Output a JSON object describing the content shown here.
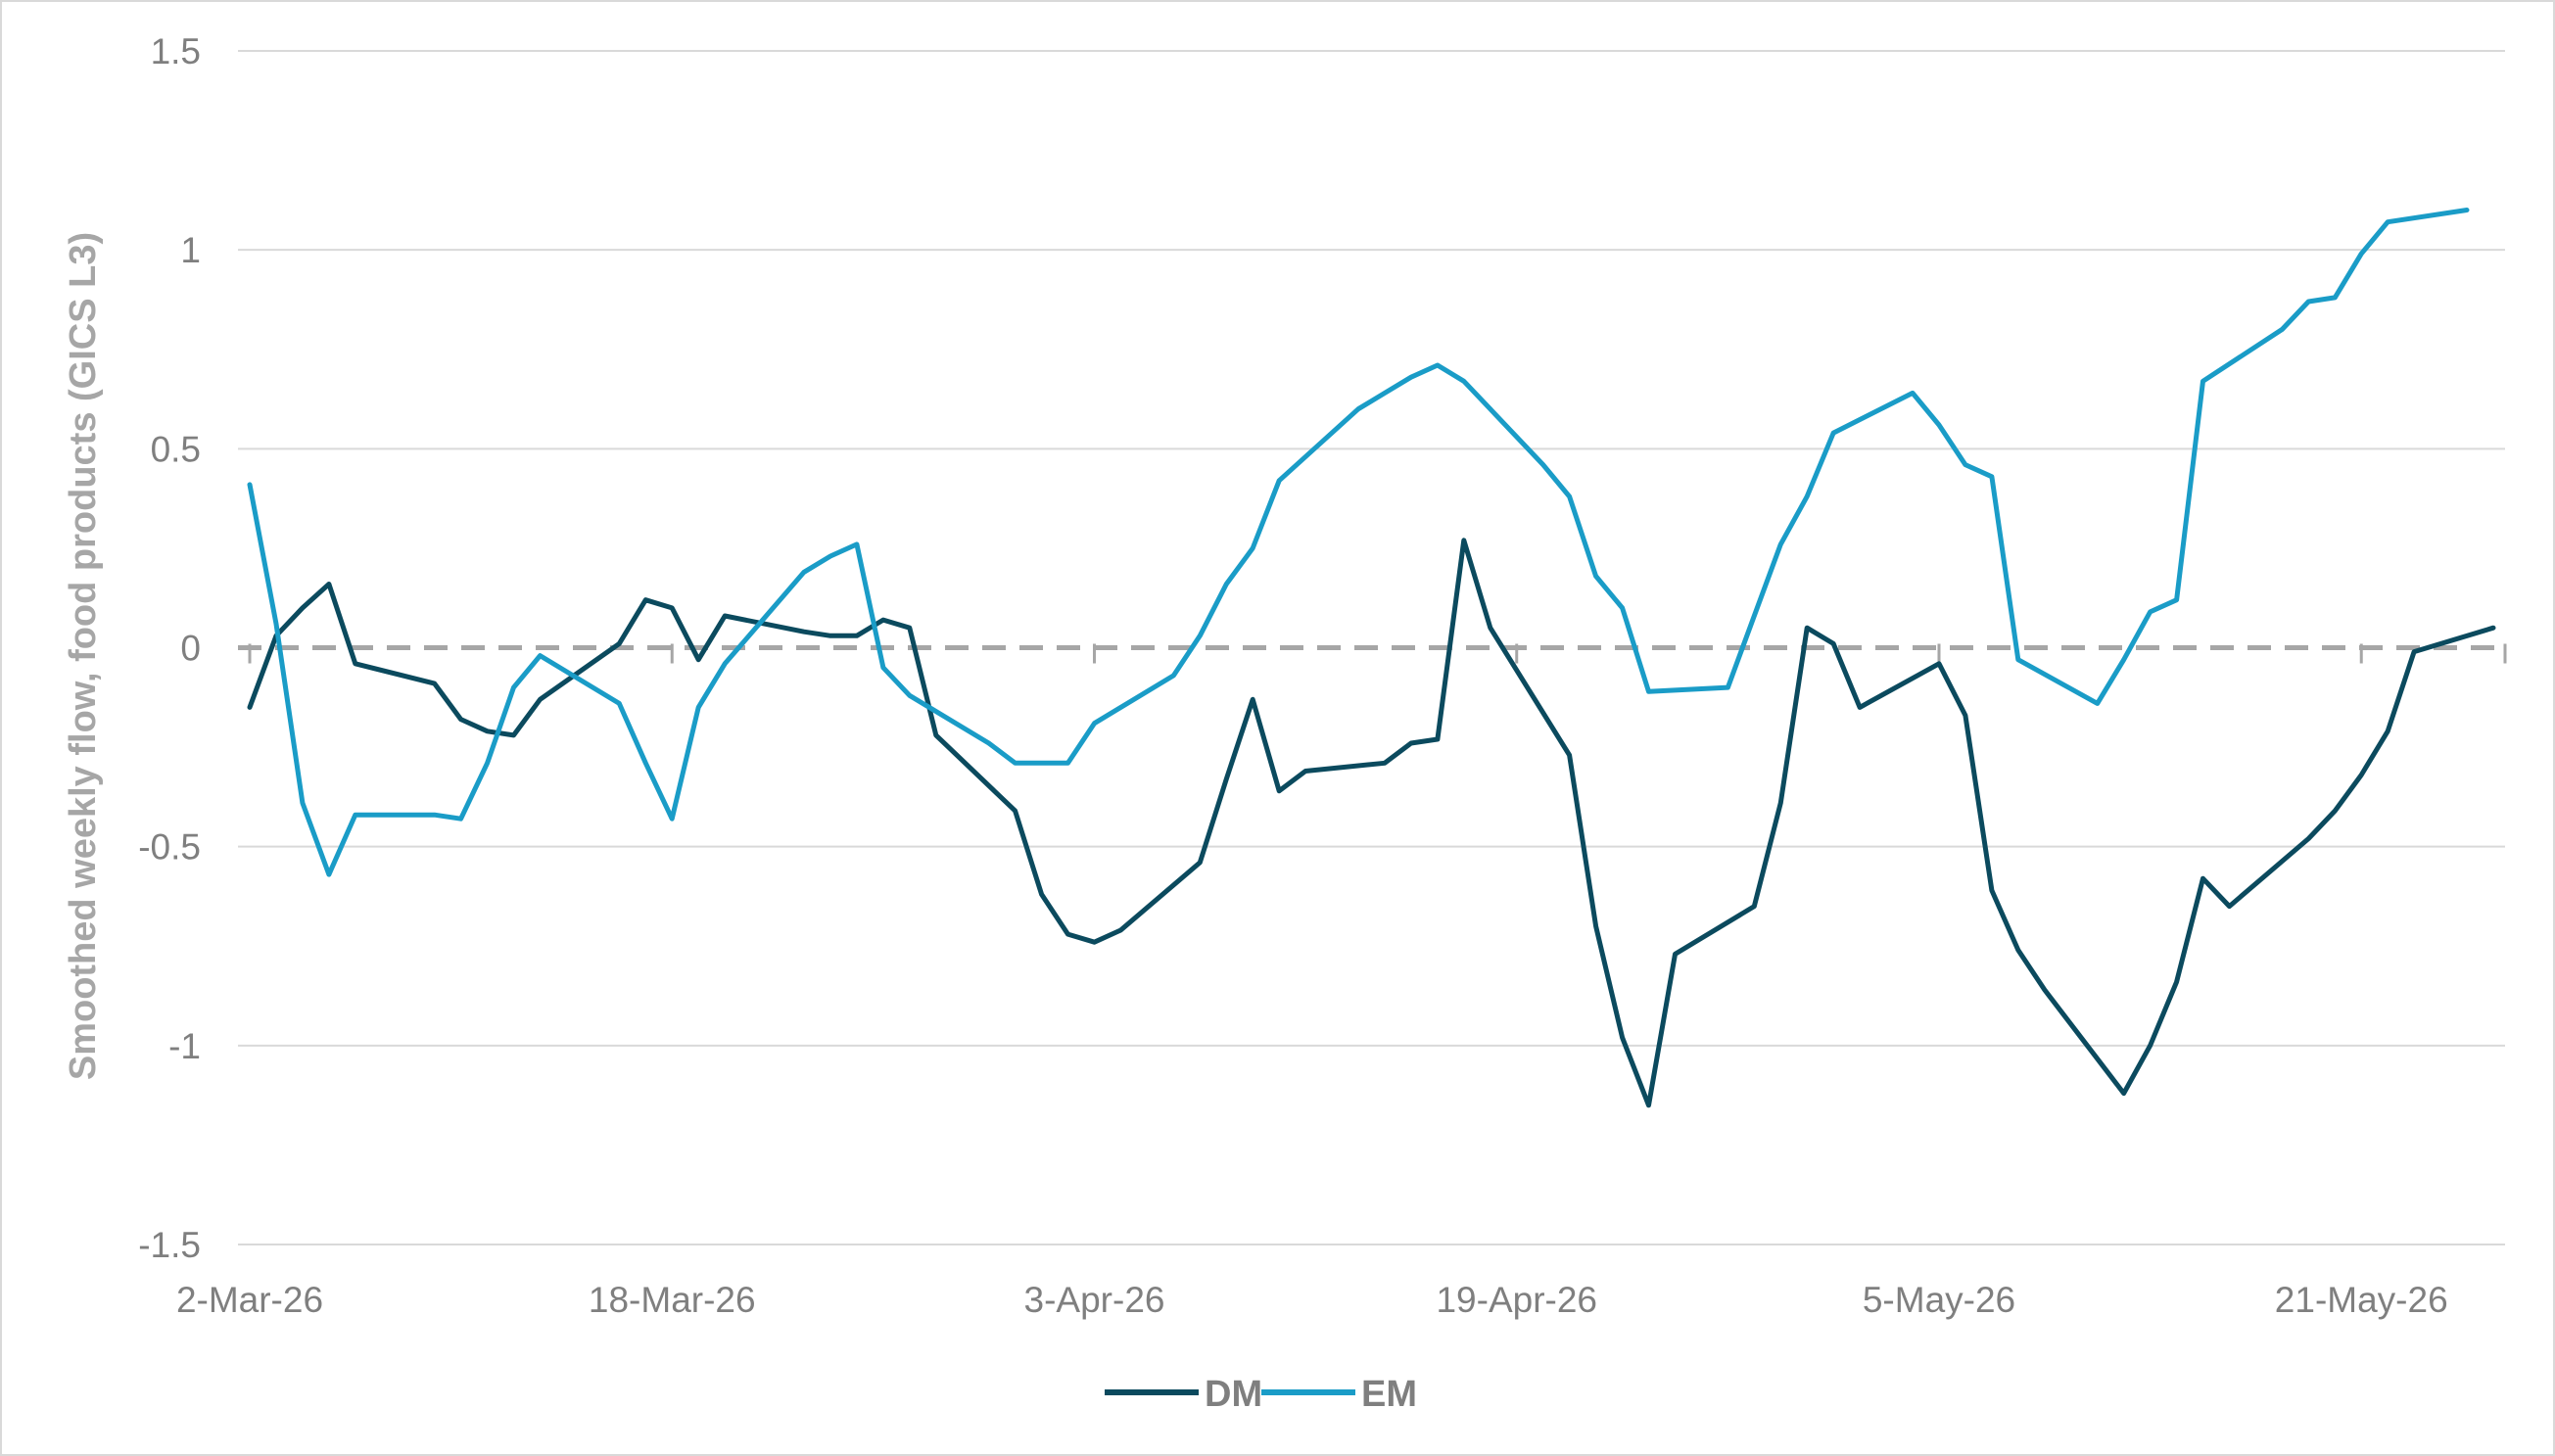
{
  "chart_data": {
    "type": "line",
    "title": "",
    "xlabel": "",
    "ylabel": "Smoothed weekly flow, food products (GICS L3)",
    "ylim": [
      -1.5,
      1.5
    ],
    "yticks": [
      1.5,
      1,
      0.5,
      0,
      -0.5,
      -1,
      -1.5
    ],
    "ytick_labels": [
      "1.5",
      "1",
      "0.5",
      "0",
      "-0.5",
      "-1",
      "-1.5"
    ],
    "xlim": [
      "2026-03-02",
      "2026-05-26"
    ],
    "xtick_labels": [
      "2-Mar-26",
      "18-Mar-26",
      "3-Apr-26",
      "19-Apr-26",
      "5-May-26",
      "21-May-26"
    ],
    "xtick_dates": [
      "2026-03-02",
      "2026-03-18",
      "2026-04-03",
      "2026-04-19",
      "2026-05-05",
      "2026-05-21"
    ],
    "grid": true,
    "zero_line": "dashed",
    "legend": "bottom-center",
    "series": [
      {
        "name": "DM",
        "color": "#0b4a5e",
        "points": [
          [
            "2026-03-02",
            -0.15
          ],
          [
            "2026-03-03",
            0.03
          ],
          [
            "2026-03-04",
            0.1
          ],
          [
            "2026-03-05",
            0.16
          ],
          [
            "2026-03-06",
            -0.04
          ],
          [
            "2026-03-09",
            -0.09
          ],
          [
            "2026-03-10",
            -0.18
          ],
          [
            "2026-03-11",
            -0.21
          ],
          [
            "2026-03-12",
            -0.22
          ],
          [
            "2026-03-13",
            -0.13
          ],
          [
            "2026-03-16",
            0.01
          ],
          [
            "2026-03-17",
            0.12
          ],
          [
            "2026-03-18",
            0.1
          ],
          [
            "2026-03-19",
            -0.03
          ],
          [
            "2026-03-20",
            0.08
          ],
          [
            "2026-03-23",
            0.04
          ],
          [
            "2026-03-24",
            0.03
          ],
          [
            "2026-03-25",
            0.03
          ],
          [
            "2026-03-26",
            0.07
          ],
          [
            "2026-03-27",
            0.05
          ],
          [
            "2026-03-28",
            -0.22
          ],
          [
            "2026-03-31",
            -0.41
          ],
          [
            "2026-04-01",
            -0.62
          ],
          [
            "2026-04-02",
            -0.72
          ],
          [
            "2026-04-03",
            -0.74
          ],
          [
            "2026-04-04",
            -0.71
          ],
          [
            "2026-04-07",
            -0.54
          ],
          [
            "2026-04-08",
            -0.33
          ],
          [
            "2026-04-09",
            -0.13
          ],
          [
            "2026-04-10",
            -0.36
          ],
          [
            "2026-04-11",
            -0.31
          ],
          [
            "2026-04-14",
            -0.29
          ],
          [
            "2026-04-15",
            -0.24
          ],
          [
            "2026-04-16",
            -0.23
          ],
          [
            "2026-04-17",
            0.27
          ],
          [
            "2026-04-18",
            0.05
          ],
          [
            "2026-04-21",
            -0.27
          ],
          [
            "2026-04-22",
            -0.7
          ],
          [
            "2026-04-23",
            -0.98
          ],
          [
            "2026-04-24",
            -1.15
          ],
          [
            "2026-04-25",
            -0.77
          ],
          [
            "2026-04-28",
            -0.65
          ],
          [
            "2026-04-29",
            -0.39
          ],
          [
            "2026-04-30",
            0.05
          ],
          [
            "2026-05-01",
            0.01
          ],
          [
            "2026-05-02",
            -0.15
          ],
          [
            "2026-05-05",
            -0.04
          ],
          [
            "2026-05-06",
            -0.17
          ],
          [
            "2026-05-07",
            -0.61
          ],
          [
            "2026-05-08",
            -0.76
          ],
          [
            "2026-05-09",
            -0.86
          ],
          [
            "2026-05-12",
            -1.12
          ],
          [
            "2026-05-13",
            -1.0
          ],
          [
            "2026-05-14",
            -0.84
          ],
          [
            "2026-05-15",
            -0.58
          ],
          [
            "2026-05-16",
            -0.65
          ],
          [
            "2026-05-19",
            -0.48
          ],
          [
            "2026-05-20",
            -0.41
          ],
          [
            "2026-05-21",
            -0.32
          ],
          [
            "2026-05-22",
            -0.21
          ],
          [
            "2026-05-23",
            -0.01
          ],
          [
            "2026-05-26",
            0.05
          ]
        ]
      },
      {
        "name": "EM",
        "color": "#1a9cc7",
        "points": [
          [
            "2026-03-02",
            0.41
          ],
          [
            "2026-03-03",
            0.06
          ],
          [
            "2026-03-04",
            -0.39
          ],
          [
            "2026-03-05",
            -0.57
          ],
          [
            "2026-03-06",
            -0.42
          ],
          [
            "2026-03-09",
            -0.42
          ],
          [
            "2026-03-10",
            -0.43
          ],
          [
            "2026-03-11",
            -0.29
          ],
          [
            "2026-03-12",
            -0.1
          ],
          [
            "2026-03-13",
            -0.02
          ],
          [
            "2026-03-16",
            -0.14
          ],
          [
            "2026-03-17",
            -0.29
          ],
          [
            "2026-03-18",
            -0.43
          ],
          [
            "2026-03-19",
            -0.15
          ],
          [
            "2026-03-20",
            -0.04
          ],
          [
            "2026-03-23",
            0.19
          ],
          [
            "2026-03-24",
            0.23
          ],
          [
            "2026-03-25",
            0.26
          ],
          [
            "2026-03-26",
            -0.05
          ],
          [
            "2026-03-27",
            -0.12
          ],
          [
            "2026-03-30",
            -0.24
          ],
          [
            "2026-03-31",
            -0.29
          ],
          [
            "2026-04-01",
            -0.29
          ],
          [
            "2026-04-02",
            -0.29
          ],
          [
            "2026-04-03",
            -0.19
          ],
          [
            "2026-04-06",
            -0.07
          ],
          [
            "2026-04-07",
            0.03
          ],
          [
            "2026-04-08",
            0.16
          ],
          [
            "2026-04-09",
            0.25
          ],
          [
            "2026-04-10",
            0.42
          ],
          [
            "2026-04-13",
            0.6
          ],
          [
            "2026-04-14",
            0.64
          ],
          [
            "2026-04-15",
            0.68
          ],
          [
            "2026-04-16",
            0.71
          ],
          [
            "2026-04-17",
            0.67
          ],
          [
            "2026-04-20",
            0.46
          ],
          [
            "2026-04-21",
            0.38
          ],
          [
            "2026-04-22",
            0.18
          ],
          [
            "2026-04-23",
            0.1
          ],
          [
            "2026-04-24",
            -0.11
          ],
          [
            "2026-04-27",
            -0.1
          ],
          [
            "2026-04-28",
            0.08
          ],
          [
            "2026-04-29",
            0.26
          ],
          [
            "2026-04-30",
            0.38
          ],
          [
            "2026-05-01",
            0.54
          ],
          [
            "2026-05-04",
            0.64
          ],
          [
            "2026-05-05",
            0.56
          ],
          [
            "2026-05-06",
            0.46
          ],
          [
            "2026-05-07",
            0.43
          ],
          [
            "2026-05-08",
            -0.03
          ],
          [
            "2026-05-11",
            -0.14
          ],
          [
            "2026-05-12",
            -0.03
          ],
          [
            "2026-05-13",
            0.09
          ],
          [
            "2026-05-14",
            0.12
          ],
          [
            "2026-05-15",
            0.67
          ],
          [
            "2026-05-18",
            0.8
          ],
          [
            "2026-05-19",
            0.87
          ],
          [
            "2026-05-20",
            0.88
          ],
          [
            "2026-05-21",
            0.99
          ],
          [
            "2026-05-22",
            1.07
          ],
          [
            "2026-05-25",
            1.1
          ]
        ]
      }
    ]
  }
}
